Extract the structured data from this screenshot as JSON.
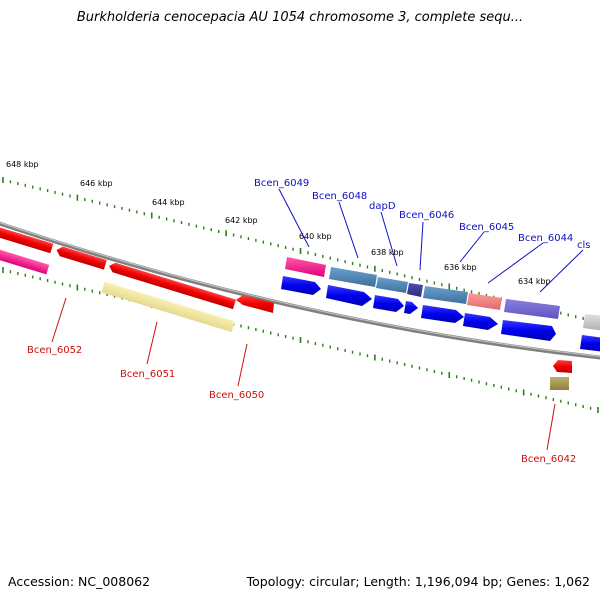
{
  "title": "Burkholderia cenocepacia AU 1054 chromosome 3, complete sequ...",
  "footer": {
    "accession": "Accession: NC_008062",
    "topology": "Topology: circular; Length: 1,196,094 bp; Genes: 1,062"
  },
  "scale_ticks": [
    "648 kbp",
    "646 kbp",
    "644 kbp",
    "642 kbp",
    "640 kbp",
    "638 kbp",
    "636 kbp",
    "634 kbp"
  ],
  "genes_top": [
    "Bcen_6049",
    "Bcen_6048",
    "dapD",
    "Bcen_6046",
    "Bcen_6045",
    "Bcen_6044",
    "cls"
  ],
  "genes_bottom": [
    "Bcen_6052",
    "Bcen_6051",
    "Bcen_6050",
    "Bcen_6042"
  ],
  "colors": {
    "forward_strand": "#0000ee",
    "reverse_strand": "#ee0000",
    "tick_green": "#2e7d1a",
    "backbone": "#808080",
    "label_top": "#1010c0",
    "label_bottom": "#cc1010"
  }
}
